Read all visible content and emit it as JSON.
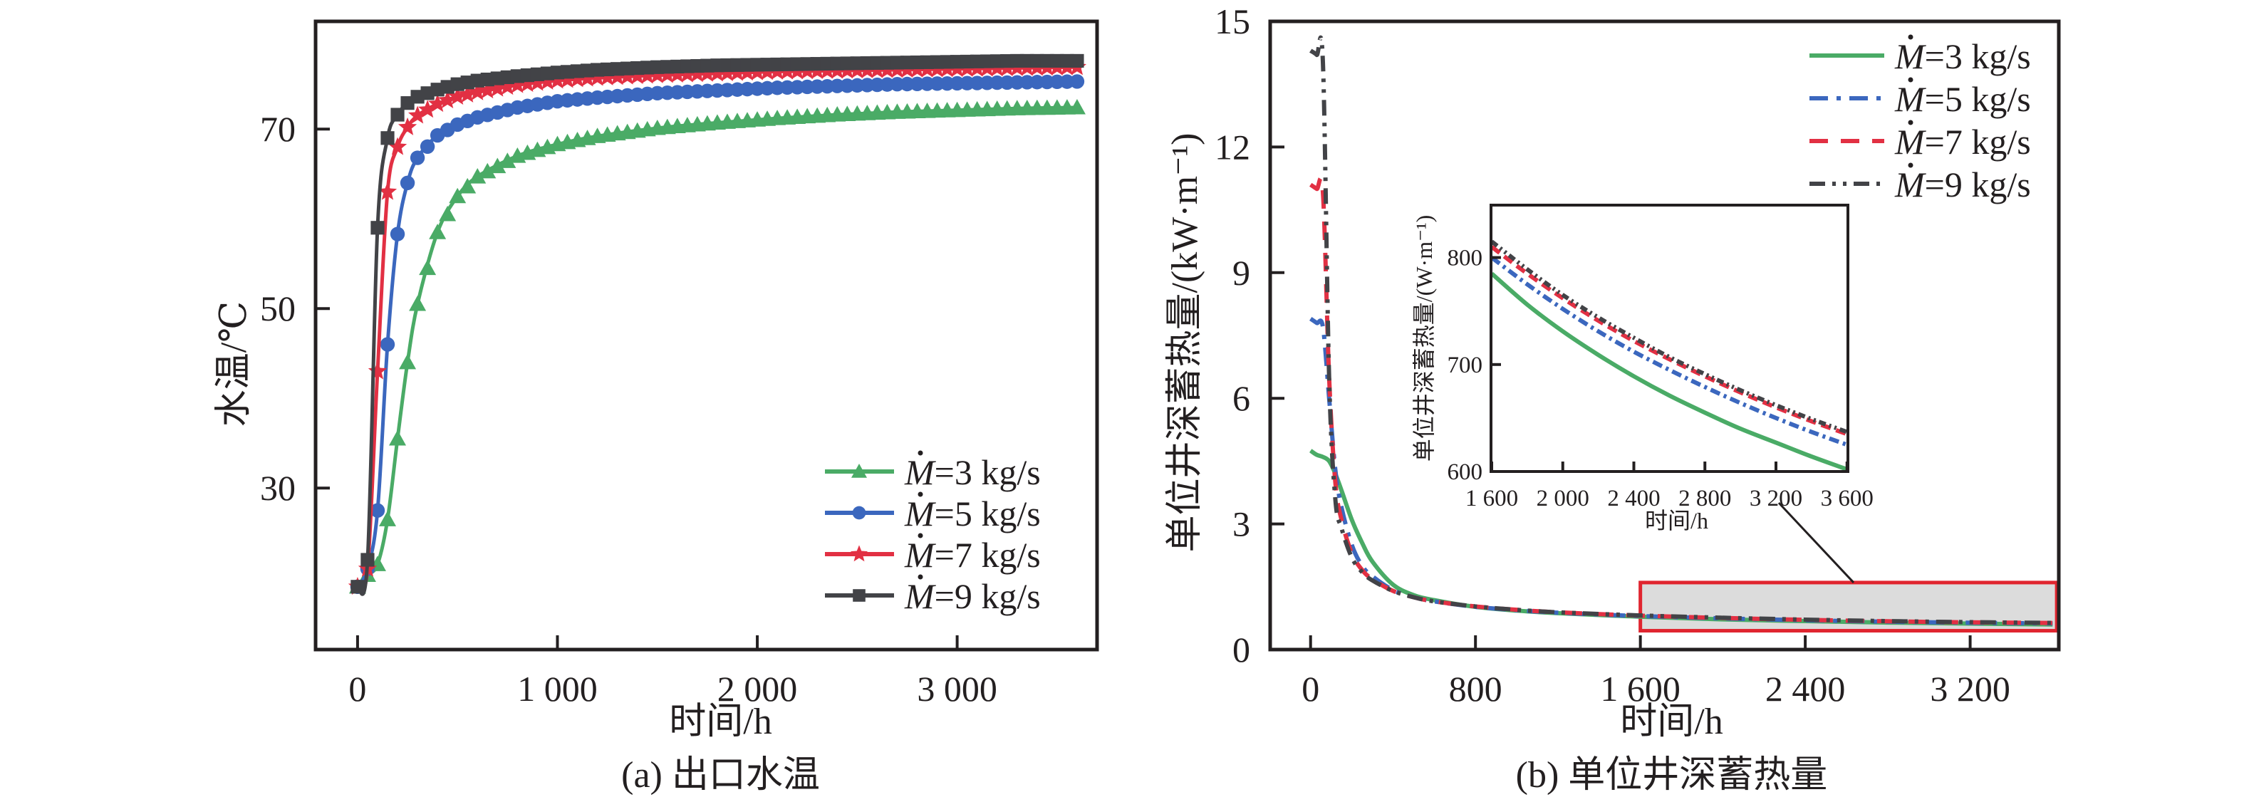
{
  "chart_data": [
    {
      "id": "a",
      "type": "line",
      "caption": "(a) 出口水温",
      "xlabel": "时间/h",
      "ylabel": "水温/℃",
      "xlim": [
        -210,
        3700
      ],
      "ylim": [
        12,
        82
      ],
      "xticks": [
        0,
        1000,
        2000,
        3000
      ],
      "xtick_labels": [
        "0",
        "1 000",
        "2 000",
        "3 000"
      ],
      "yticks": [
        30,
        50,
        70
      ],
      "ytick_labels": [
        "30",
        "50",
        "70"
      ],
      "grid": false,
      "legend_position": "bottom-right",
      "x": [
        0,
        50,
        100,
        150,
        200,
        250,
        300,
        400,
        500,
        600,
        800,
        1000,
        1200,
        1500,
        1800,
        2100,
        2400,
        2700,
        3000,
        3300,
        3600
      ],
      "series": [
        {
          "name": "M=3 kg/s",
          "label_prefix": "M",
          "label_suffix": "=3 kg/s",
          "color": "#4aab66",
          "marker": "triangle",
          "values": [
            19,
            20.3,
            21.5,
            26.5,
            35.5,
            44,
            50.5,
            58.5,
            62.5,
            64.7,
            67.0,
            68.3,
            69.2,
            70.1,
            70.7,
            71.2,
            71.6,
            71.9,
            72.1,
            72.3,
            72.4
          ]
        },
        {
          "name": "M=5 kg/s",
          "label_prefix": "M",
          "label_suffix": "=5 kg/s",
          "color": "#3b67be",
          "marker": "circle",
          "values": [
            19,
            21,
            27.5,
            46,
            58.3,
            64,
            66.8,
            69.3,
            70.5,
            71.3,
            72.4,
            73.1,
            73.5,
            74.0,
            74.3,
            74.6,
            74.8,
            75.0,
            75.1,
            75.2,
            75.3
          ]
        },
        {
          "name": "M=7 kg/s",
          "label_prefix": "M",
          "label_suffix": "=7 kg/s",
          "color": "#e23043",
          "marker": "star",
          "values": [
            19,
            21,
            43,
            63,
            68,
            70.2,
            71.5,
            72.8,
            73.6,
            74.1,
            74.9,
            75.4,
            75.7,
            76.0,
            76.2,
            76.4,
            76.5,
            76.6,
            76.7,
            76.8,
            76.9
          ]
        },
        {
          "name": "M=9 kg/s",
          "label_prefix": "M",
          "label_suffix": "=9 kg/s",
          "color": "#424347",
          "marker": "square",
          "values": [
            19,
            22,
            59,
            69,
            71.6,
            72.9,
            73.6,
            74.4,
            75.0,
            75.4,
            75.9,
            76.3,
            76.6,
            76.9,
            77.1,
            77.2,
            77.3,
            77.4,
            77.5,
            77.6,
            77.6
          ]
        }
      ]
    },
    {
      "id": "b",
      "type": "line",
      "caption": "(b) 单位井深蓄热量",
      "xlabel": "时间/h",
      "ylabel": "单位井深蓄热量/(kW·m⁻¹)",
      "xlim": [
        -196,
        3630
      ],
      "ylim": [
        0,
        15
      ],
      "xticks": [
        0,
        800,
        1600,
        2400,
        3200
      ],
      "xtick_labels": [
        "0",
        "800",
        "1 600",
        "2 400",
        "3 200"
      ],
      "yticks": [
        0,
        3,
        6,
        9,
        12,
        15
      ],
      "ytick_labels": [
        "0",
        "3",
        "6",
        "9",
        "12",
        "15"
      ],
      "grid": false,
      "legend_position": "top-right",
      "highlight_box": {
        "x_range": [
          1600,
          3620
        ],
        "y_range": [
          0.45,
          1.6
        ],
        "fill": "#dcdcdc",
        "stroke": "#e0252f"
      },
      "x": [
        0,
        30,
        60,
        90,
        120,
        150,
        200,
        250,
        300,
        400,
        500,
        600,
        800,
        1000,
        1200,
        1600,
        2000,
        2400,
        2800,
        3200,
        3600
      ],
      "series": [
        {
          "name": "M=3 kg/s",
          "label_prefix": "M",
          "label_suffix": "=3 kg/s",
          "color": "#4aab66",
          "dash": "solid",
          "values": [
            4.75,
            4.65,
            4.6,
            4.5,
            4.2,
            3.8,
            3.1,
            2.55,
            2.1,
            1.55,
            1.3,
            1.18,
            1.02,
            0.93,
            0.87,
            0.785,
            0.72,
            0.68,
            0.645,
            0.62,
            0.6
          ]
        },
        {
          "name": "M=5 kg/s",
          "label_prefix": "M",
          "label_suffix": "=5 kg/s",
          "color": "#3b67be",
          "dash": "dashdot",
          "values": [
            7.9,
            7.8,
            7.7,
            6.0,
            4.3,
            3.4,
            2.5,
            2.0,
            1.75,
            1.42,
            1.25,
            1.15,
            1.02,
            0.94,
            0.88,
            0.8,
            0.745,
            0.7,
            0.665,
            0.64,
            0.625
          ]
        },
        {
          "name": "M=7 kg/s",
          "label_prefix": "M",
          "label_suffix": "=7 kg/s",
          "color": "#e23043",
          "dash": "dashed",
          "values": [
            11.1,
            11.0,
            10.9,
            6.5,
            4.0,
            3.1,
            2.3,
            1.9,
            1.68,
            1.4,
            1.25,
            1.15,
            1.03,
            0.95,
            0.89,
            0.81,
            0.755,
            0.71,
            0.675,
            0.65,
            0.635
          ]
        },
        {
          "name": "M=9 kg/s",
          "label_prefix": "M",
          "label_suffix": "=9 kg/s",
          "color": "#424347",
          "dash": "dashdotdot",
          "values": [
            14.3,
            14.2,
            14.0,
            6.5,
            3.6,
            2.9,
            2.2,
            1.85,
            1.65,
            1.4,
            1.25,
            1.15,
            1.03,
            0.95,
            0.89,
            0.815,
            0.76,
            0.715,
            0.68,
            0.655,
            0.637
          ]
        }
      ],
      "inset": {
        "xlabel": "时间/h",
        "ylabel": "单位井深蓄热量/(W·m⁻¹)",
        "xlim": [
          1596,
          3605
        ],
        "ylim": [
          600,
          849
        ],
        "xticks": [
          1600,
          2000,
          2400,
          2800,
          3200,
          3600
        ],
        "xtick_labels": [
          "1 600",
          "2 000",
          "2 400",
          "2 800",
          "3 200",
          "3 600"
        ],
        "yticks": [
          600,
          700,
          800
        ],
        "ytick_labels": [
          "600",
          "700",
          "800"
        ],
        "x": [
          1600,
          1800,
          2000,
          2200,
          2400,
          2600,
          2800,
          3000,
          3200,
          3400,
          3600
        ],
        "series": [
          {
            "name": "M=3 kg/s",
            "values": [
              785,
              756,
              731,
              709,
              689,
              671,
              655,
              640,
              627,
              614,
              602
            ]
          },
          {
            "name": "M=5 kg/s",
            "values": [
              800,
              775,
              752,
              731,
              712,
              695,
              679,
              664,
              650,
              637,
              625
            ]
          },
          {
            "name": "M=7 kg/s",
            "values": [
              810,
              785,
              762,
              741,
              722,
              705,
              689,
              674,
              660,
              647,
              635
            ]
          },
          {
            "name": "M=9 kg/s",
            "values": [
              815,
              789,
              765,
              744,
              725,
              707,
              691,
              676,
              662,
              649,
              637
            ]
          }
        ]
      }
    }
  ]
}
